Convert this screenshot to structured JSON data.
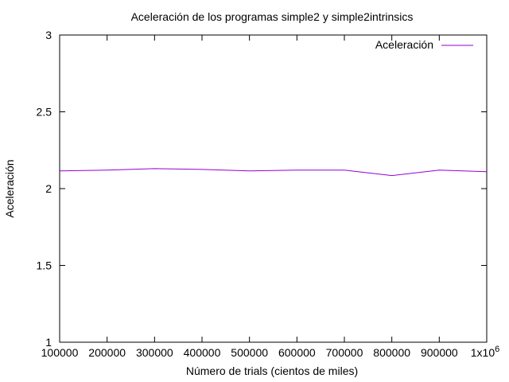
{
  "chart_data": {
    "type": "line",
    "title": "Aceleración de los programas simple2 y simple2intrinsics",
    "xlabel": "Número de trials (cientos de miles)",
    "ylabel": "Aceleración",
    "xlim": [
      100000,
      1000000
    ],
    "ylim": [
      1,
      3
    ],
    "grid": false,
    "legend_position": "top-right",
    "x_ticks": [
      {
        "value": 100000,
        "label": "100000"
      },
      {
        "value": 200000,
        "label": "200000"
      },
      {
        "value": 300000,
        "label": "300000"
      },
      {
        "value": 400000,
        "label": "400000"
      },
      {
        "value": 500000,
        "label": "500000"
      },
      {
        "value": 600000,
        "label": "600000"
      },
      {
        "value": 700000,
        "label": "700000"
      },
      {
        "value": 800000,
        "label": "800000"
      },
      {
        "value": 900000,
        "label": "900000"
      },
      {
        "value": 1000000,
        "label": "1x10",
        "sup": "6"
      }
    ],
    "y_ticks": [
      {
        "value": 1,
        "label": "1"
      },
      {
        "value": 1.5,
        "label": "1.5"
      },
      {
        "value": 2,
        "label": "2"
      },
      {
        "value": 2.5,
        "label": "2.5"
      },
      {
        "value": 3,
        "label": "3"
      }
    ],
    "series": [
      {
        "name": "Aceleración",
        "color": "#9400d3",
        "x": [
          100000,
          200000,
          300000,
          400000,
          500000,
          600000,
          700000,
          800000,
          900000,
          1000000
        ],
        "y": [
          2.115,
          2.12,
          2.13,
          2.125,
          2.115,
          2.12,
          2.12,
          2.085,
          2.12,
          2.11
        ]
      }
    ]
  }
}
